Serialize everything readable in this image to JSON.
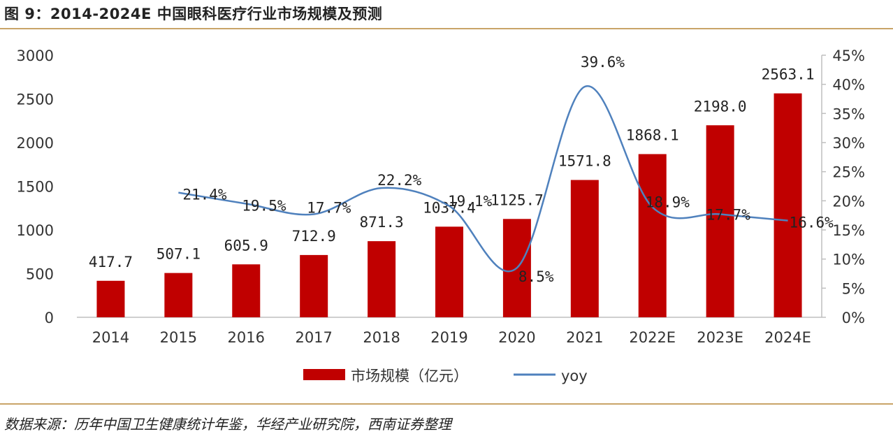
{
  "figure_title": "图 9：2014-2024E 中国眼科医疗行业市场规模及预测",
  "source": "数据来源：历年中国卫生健康统计年鉴，华经产业研究院，西南证券整理",
  "colors": {
    "bar": "#c00000",
    "line": "#4f81bd",
    "rule": "#c9a468",
    "axis": "#bfbfbf"
  },
  "chart_data": {
    "type": "bar",
    "title": "2014-2024E 中国眼科医疗行业市场规模及预测",
    "categories": [
      "2014",
      "2015",
      "2016",
      "2017",
      "2018",
      "2019",
      "2020",
      "2021",
      "2022E",
      "2023E",
      "2024E"
    ],
    "series": [
      {
        "name": "市场规模（亿元）",
        "type": "bar",
        "axis": "left",
        "values": [
          417.7,
          507.1,
          605.9,
          712.9,
          871.3,
          1037.4,
          1125.7,
          1571.8,
          1868.1,
          2198.0,
          2563.1
        ],
        "labels": [
          "417.7",
          "507.1",
          "605.9",
          "712.9",
          "871.3",
          "1037.4",
          "1125.7",
          "1571.8",
          "1868.1",
          "2198.0",
          "2563.1"
        ]
      },
      {
        "name": "yoy",
        "type": "line",
        "axis": "right",
        "values": [
          null,
          21.4,
          19.5,
          17.7,
          22.2,
          19.1,
          8.5,
          39.6,
          18.9,
          17.7,
          16.6
        ],
        "labels": [
          "",
          "21.4%",
          "19.5%",
          "17.7%",
          "22.2%",
          "19.1%",
          "8.5%",
          "39.6%",
          "18.9%",
          "17.7%",
          "16.6%"
        ]
      }
    ],
    "left_axis": {
      "ylim": [
        0,
        3000
      ],
      "ticks": [
        "0",
        "500",
        "1000",
        "1500",
        "2000",
        "2500",
        "3000"
      ]
    },
    "right_axis": {
      "ylim": [
        0,
        45
      ],
      "ticks": [
        "0%",
        "5%",
        "10%",
        "15%",
        "20%",
        "25%",
        "30%",
        "35%",
        "40%",
        "45%"
      ]
    },
    "legend": {
      "position": "bottom",
      "items": [
        "市场规模（亿元）",
        "yoy"
      ]
    }
  }
}
